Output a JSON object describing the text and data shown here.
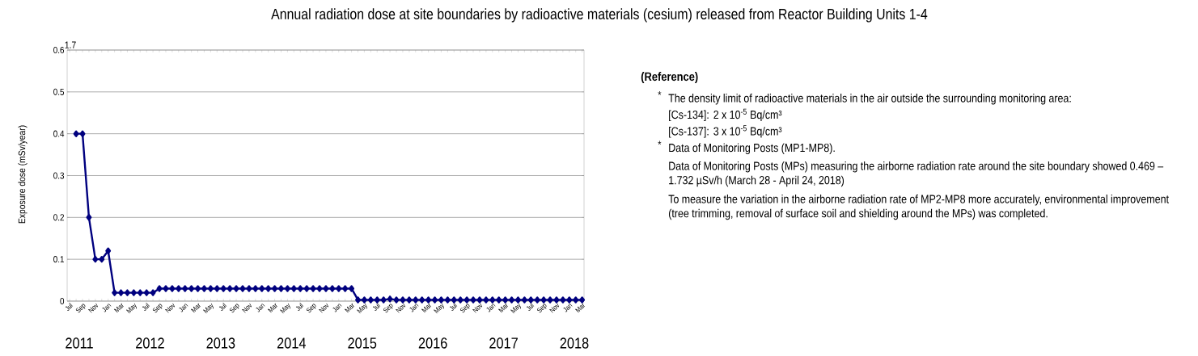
{
  "chart_data": {
    "type": "line",
    "title": "Annual radiation dose at site boundaries by radioactive materials (cesium) released from Reactor Building Units 1-4",
    "ylabel": "Exposure dose (mSv/year)",
    "categories": [
      "Jul",
      null,
      "Sep",
      null,
      "Nov",
      null,
      "Jan",
      null,
      "Mar",
      null,
      "May",
      null,
      "Jul",
      null,
      "Sep",
      null,
      "Nov",
      null,
      "Jan",
      null,
      "Mar",
      null,
      "May",
      null,
      "Jul",
      null,
      "Sep",
      null,
      "Nov",
      null,
      "Jan",
      null,
      "Mar",
      null,
      "May",
      null,
      "Jul",
      null,
      "Sep",
      null,
      "Nov",
      null,
      "Jan",
      null,
      "Mar",
      null,
      "May",
      null,
      "Jul",
      null,
      "Sep",
      null,
      "Nov",
      null,
      "Jan",
      null,
      "Mar",
      null,
      "May",
      null,
      "Jul",
      null,
      "Sep",
      null,
      "Nov",
      null,
      "Jan",
      null,
      "Mar",
      null,
      "May",
      null,
      "Jul",
      null,
      "Sep",
      null,
      "Nov",
      null,
      "Jan",
      null,
      "Mar"
    ],
    "series": [
      {
        "color": "#00007f",
        "values": [
          null,
          0.4,
          0.4,
          0.2,
          0.1,
          0.1,
          0.12,
          0.02,
          0.02,
          0.02,
          0.02,
          0.02,
          0.02,
          0.02,
          0.03,
          0.03,
          0.03,
          0.03,
          0.03,
          0.03,
          0.03,
          0.03,
          0.03,
          0.03,
          0.03,
          0.03,
          0.03,
          0.03,
          0.03,
          0.03,
          0.03,
          0.03,
          0.03,
          0.03,
          0.03,
          0.03,
          0.03,
          0.03,
          0.03,
          0.03,
          0.03,
          0.03,
          0.03,
          0.03,
          0.03,
          0.003,
          0.003,
          0.003,
          0.003,
          0.003,
          0.005,
          0.003,
          0.003,
          0.003,
          0.003,
          0.003,
          0.003,
          0.003,
          0.003,
          0.003,
          0.003,
          0.003,
          0.003,
          0.003,
          0.003,
          0.003,
          0.003,
          0.003,
          0.003,
          0.003,
          0.003,
          0.003,
          0.003,
          0.003,
          0.003,
          0.003,
          0.003,
          0.003,
          0.003,
          0.003,
          0.003
        ]
      }
    ],
    "ylim": [
      0,
      0.6
    ],
    "yticks": [
      0,
      0.1,
      0.2,
      0.3,
      0.4,
      0.5,
      0.6
    ],
    "grid": "y",
    "marker": "diamond",
    "line_style": "solid",
    "annotations": [
      "2011",
      "2012",
      "2013",
      "2014",
      "2015",
      "2016",
      "2017",
      "2018",
      "(Reference)",
      "*",
      "The density limit of radioactive materials in the air outside the surrounding monitoring area:",
      "[Cs-134]: 2 x 10$^{-5}$ Bq/cm³",
      "[Cs-137]: 3 x 10$^{-5}$ Bq/cm³",
      "*",
      "Data of Monitoring Posts (MP1-MP8).",
      "Data of Monitoring Posts (MPs) measuring the airborne radiation rate around the site boundary showed 0.469 – 1.732 µSv/h (March 28 - April 24, 2018)",
      "To measure the variation in the airborne radiation rate of MP2-MP8 more accurately, environmental improvement (tree trimming, removal of surface soil and shielding around the MPs) was completed.",
      "1.7"
    ]
  }
}
